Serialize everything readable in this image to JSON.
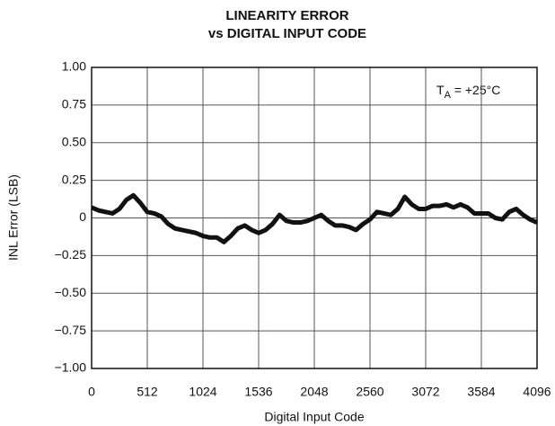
{
  "chart_data": {
    "type": "line",
    "title": [
      "LINEARITY ERROR",
      "vs DIGITAL INPUT CODE"
    ],
    "x_label": "Digital Input Code",
    "y_label": "INL Error (LSB)",
    "annotation": {
      "main": "T",
      "subscript": "A",
      "suffix": " = +25°C"
    },
    "x": [
      0,
      64,
      128,
      192,
      256,
      320,
      384,
      448,
      512,
      576,
      640,
      704,
      768,
      832,
      896,
      960,
      1024,
      1088,
      1152,
      1216,
      1280,
      1344,
      1408,
      1472,
      1536,
      1600,
      1664,
      1728,
      1792,
      1856,
      1920,
      1984,
      2048,
      2112,
      2176,
      2240,
      2304,
      2368,
      2432,
      2496,
      2560,
      2624,
      2688,
      2752,
      2816,
      2880,
      2944,
      3008,
      3072,
      3136,
      3200,
      3264,
      3328,
      3392,
      3456,
      3520,
      3584,
      3648,
      3712,
      3776,
      3840,
      3904,
      3968,
      4032,
      4096
    ],
    "series": [
      {
        "color": "#111111",
        "values": [
          0.07,
          0.05,
          0.04,
          0.03,
          0.06,
          0.12,
          0.15,
          0.1,
          0.04,
          0.03,
          0.01,
          -0.04,
          -0.07,
          -0.08,
          -0.09,
          -0.1,
          -0.12,
          -0.13,
          -0.13,
          -0.16,
          -0.12,
          -0.07,
          -0.05,
          -0.08,
          -0.1,
          -0.08,
          -0.04,
          0.02,
          -0.02,
          -0.03,
          -0.03,
          -0.02,
          0.0,
          0.02,
          -0.02,
          -0.05,
          -0.05,
          -0.06,
          -0.08,
          -0.04,
          -0.01,
          0.04,
          0.03,
          0.02,
          0.06,
          0.14,
          0.09,
          0.06,
          0.06,
          0.08,
          0.08,
          0.09,
          0.07,
          0.09,
          0.07,
          0.03,
          0.03,
          0.03,
          0.0,
          -0.01,
          0.04,
          0.06,
          0.02,
          -0.01,
          -0.03
        ]
      }
    ],
    "xlim": [
      0,
      4096
    ],
    "xticks": [
      0,
      512,
      1024,
      1536,
      2048,
      2560,
      3072,
      3584,
      4096
    ],
    "ylim": [
      -1,
      1
    ],
    "yticks": [
      {
        "value": -1,
        "label": "−1.00"
      },
      {
        "value": -0.75,
        "label": "−0.75"
      },
      {
        "value": -0.5,
        "label": "−0.50"
      },
      {
        "value": -0.25,
        "label": "−0.25"
      },
      0,
      {
        "value": 0.25,
        "label": "0.25"
      },
      {
        "value": 0.5,
        "label": "0.50"
      },
      {
        "value": 0.75,
        "label": "0.75"
      },
      {
        "value": 1,
        "label": "1.00"
      }
    ],
    "grid": true
  }
}
